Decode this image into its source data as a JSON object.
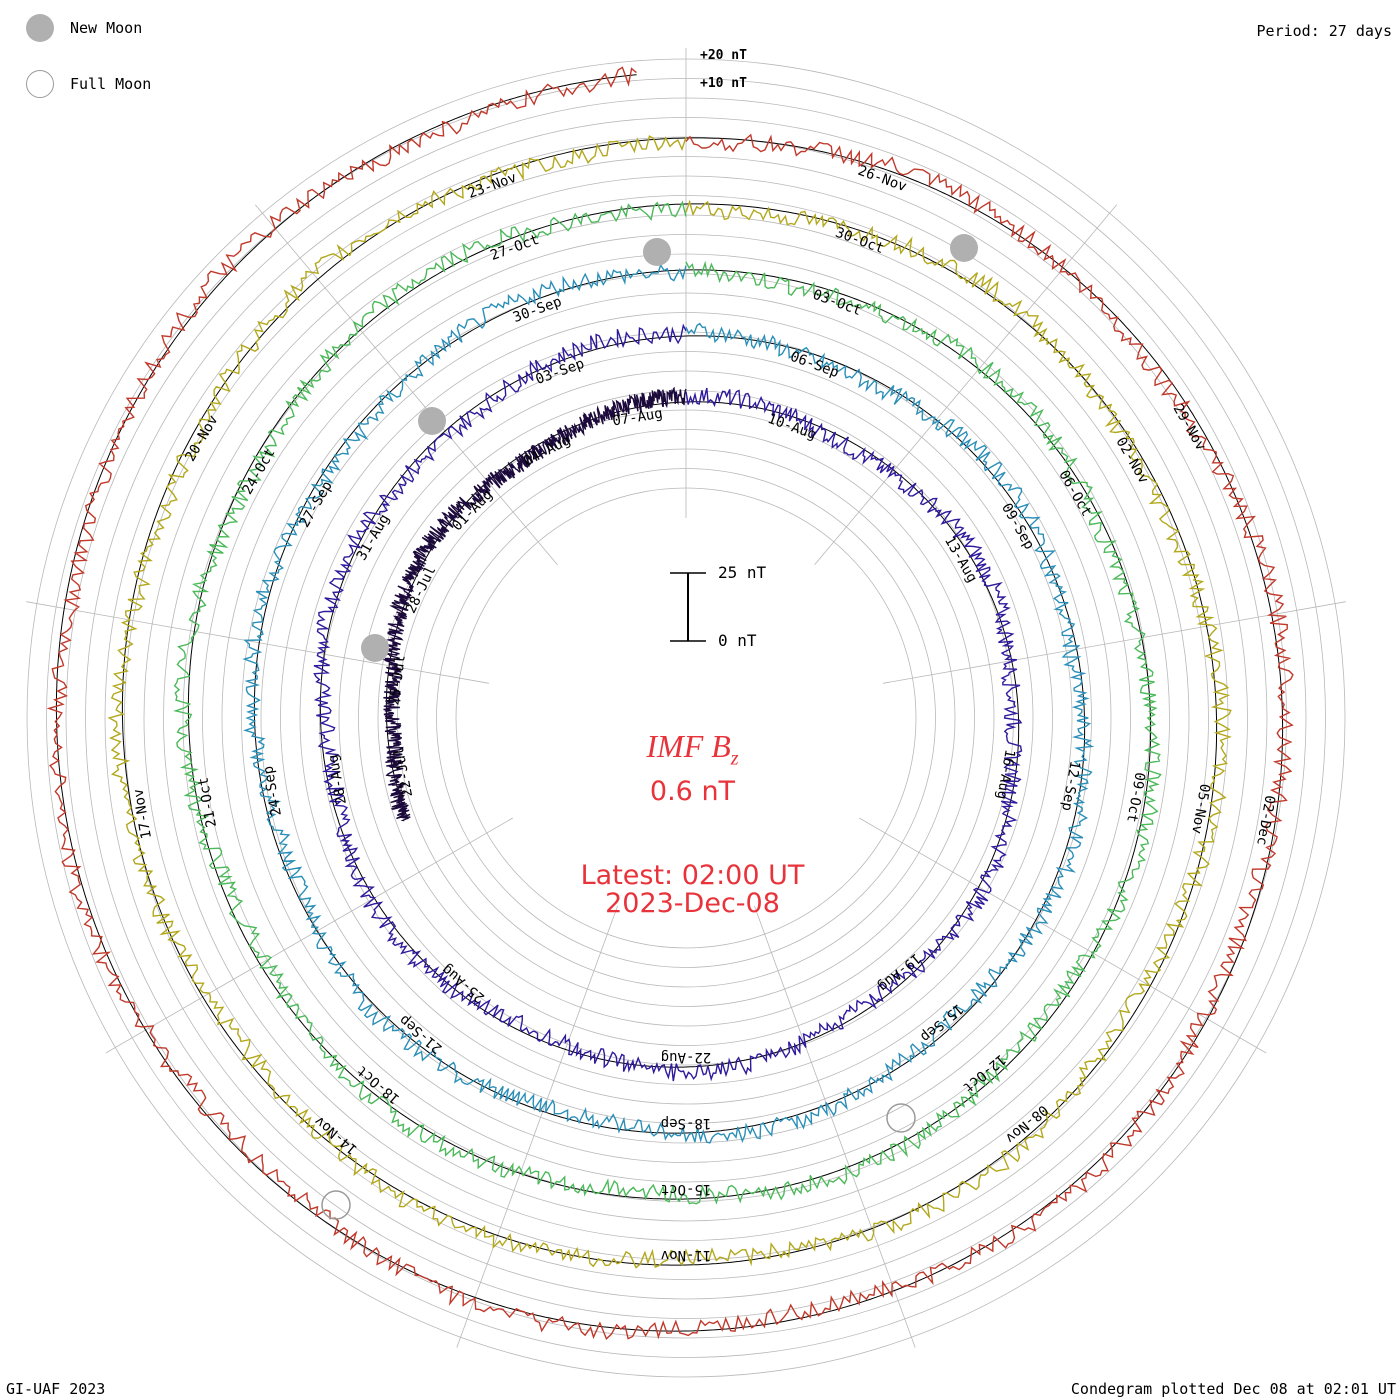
{
  "legend": {
    "new_moon_label": "New Moon",
    "full_moon_label": "Full Moon",
    "new_moon_color": "#b0b0b0",
    "full_moon_color": "#9a9a9a"
  },
  "period_label": "Period: 27 days",
  "ring_labels": {
    "plus20": "+20 nT",
    "plus10": "+10 nT"
  },
  "scale_bar": {
    "top_label": "25 nT",
    "bottom_label": "0 nT"
  },
  "center": {
    "variable": "IMF B",
    "subscript": "z",
    "value": "0.6 nT",
    "latest": "Latest: 02:00 UT",
    "date": "2023-Dec-08"
  },
  "footer": {
    "left": "GI-UAF 2023",
    "right": "Condegram plotted Dec 08 at 02:01 UT"
  },
  "chart_data": {
    "type": "line",
    "projection": "polar-spiral",
    "period_days": 27,
    "variable": "IMF Bz",
    "units": "nT",
    "latest_value": 0.6,
    "turns": [
      {
        "color": "#1c0a3c",
        "date_labels": [
          "22-Jul",
          "25-Jul",
          "28-Jul",
          "01-Aug",
          "04-Aug",
          "07-Aug"
        ]
      },
      {
        "color": "#2e1a9c",
        "date_labels": [
          "10-Aug",
          "13-Aug",
          "16-Aug",
          "19-Aug",
          "22-Aug",
          "25-Aug",
          "28-Aug",
          "31-Aug",
          "03-Sep"
        ]
      },
      {
        "color": "#2b8fb8",
        "date_labels": [
          "06-Sep",
          "09-Sep",
          "12-Sep",
          "15-Sep",
          "18-Sep",
          "21-Sep",
          "24-Sep",
          "27-Sep",
          "30-Sep"
        ]
      },
      {
        "color": "#4cb95a",
        "date_labels": [
          "03-Oct",
          "06-Oct",
          "09-Oct",
          "12-Oct",
          "15-Oct",
          "18-Oct",
          "21-Oct",
          "24-Oct",
          "27-Oct"
        ]
      },
      {
        "color": "#b3a81c",
        "date_labels": [
          "30-Oct",
          "02-Nov",
          "05-Nov",
          "08-Nov",
          "11-Nov",
          "14-Nov",
          "17-Nov",
          "20-Nov",
          "23-Nov"
        ]
      },
      {
        "color": "#c0392b",
        "date_labels": [
          "26-Nov",
          "29-Nov",
          "02-Dec"
        ]
      }
    ]
  }
}
